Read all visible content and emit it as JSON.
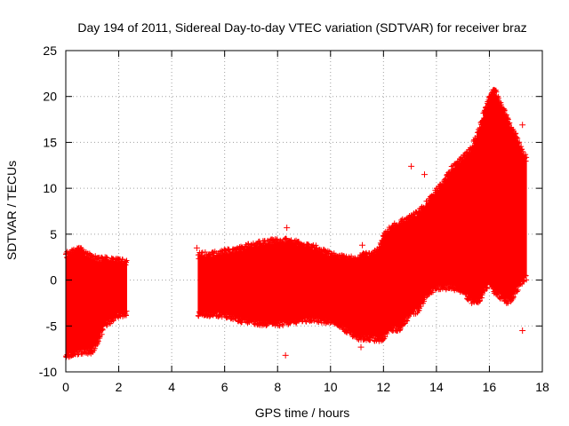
{
  "chart_data": {
    "type": "scatter",
    "title": "Day 194 of 2011, Sidereal Day-to-day VTEC variation (SDTVAR) for receiver braz",
    "xlabel": "GPS time / hours",
    "ylabel": "SDTVAR / TECUs",
    "xlim": [
      0,
      18
    ],
    "ylim": [
      -10,
      25
    ],
    "x_ticks": [
      0,
      2,
      4,
      6,
      8,
      10,
      12,
      14,
      16,
      18
    ],
    "y_ticks": [
      -10,
      -5,
      0,
      5,
      10,
      15,
      20,
      25
    ],
    "grid": true,
    "marker": "+",
    "series_color": "#ff0000",
    "series": [
      {
        "name": "SDTVAR",
        "envelope_x": [
          0.0,
          0.3,
          0.5,
          0.8,
          1.0,
          1.2,
          1.5,
          1.8,
          2.0,
          2.3
        ],
        "envelope_upper": [
          2.5,
          2.8,
          3.2,
          2.5,
          2.2,
          2.0,
          2.0,
          2.0,
          1.8,
          1.8
        ],
        "envelope_lower": [
          -8.0,
          -7.8,
          -7.5,
          -7.5,
          -7.5,
          -6.5,
          -4.5,
          -4.0,
          -3.5,
          -3.5
        ],
        "envelope2_x": [
          5.0,
          5.5,
          6.0,
          6.5,
          7.0,
          7.5,
          8.0,
          8.5,
          9.0,
          9.5,
          10.0,
          10.5,
          11.0,
          11.3,
          11.5,
          11.8,
          12.0,
          12.3,
          12.6,
          13.0,
          13.3,
          13.6,
          14.0,
          14.3,
          14.6,
          15.0,
          15.3,
          15.6,
          15.8,
          16.0,
          16.2,
          16.4,
          16.6,
          16.8,
          17.0,
          17.2,
          17.4
        ],
        "envelope2_upper": [
          2.5,
          2.5,
          2.8,
          3.0,
          3.5,
          3.8,
          4.0,
          4.0,
          3.5,
          3.2,
          2.5,
          2.2,
          2.0,
          2.5,
          2.5,
          3.0,
          4.5,
          5.5,
          6.0,
          6.5,
          7.0,
          8.0,
          9.5,
          10.5,
          12.0,
          13.0,
          14.0,
          16.0,
          18.0,
          19.5,
          20.5,
          19.0,
          18.0,
          16.5,
          15.5,
          14.0,
          13.0
        ],
        "envelope2_lower": [
          -3.5,
          -3.5,
          -3.5,
          -4.0,
          -4.3,
          -4.5,
          -4.5,
          -4.3,
          -4.0,
          -4.0,
          -4.3,
          -5.0,
          -6.0,
          -6.0,
          -6.0,
          -6.2,
          -6.0,
          -5.0,
          -5.0,
          -3.5,
          -3.0,
          -1.5,
          -0.5,
          -0.5,
          -0.5,
          -1.0,
          -2.0,
          -2.0,
          -1.0,
          0.0,
          -1.0,
          -1.5,
          -2.0,
          -2.0,
          -1.0,
          0.0,
          0.5
        ],
        "outliers": [
          {
            "x": 0.5,
            "y": 3.5
          },
          {
            "x": 4.95,
            "y": 3.5
          },
          {
            "x": 8.35,
            "y": 5.7
          },
          {
            "x": 8.3,
            "y": -8.2
          },
          {
            "x": 8.7,
            "y": -4.7
          },
          {
            "x": 11.15,
            "y": -7.3
          },
          {
            "x": 11.2,
            "y": 3.8
          },
          {
            "x": 13.05,
            "y": 12.4
          },
          {
            "x": 13.55,
            "y": 11.5
          },
          {
            "x": 17.25,
            "y": 16.9
          },
          {
            "x": 17.25,
            "y": -5.5
          }
        ]
      }
    ]
  }
}
